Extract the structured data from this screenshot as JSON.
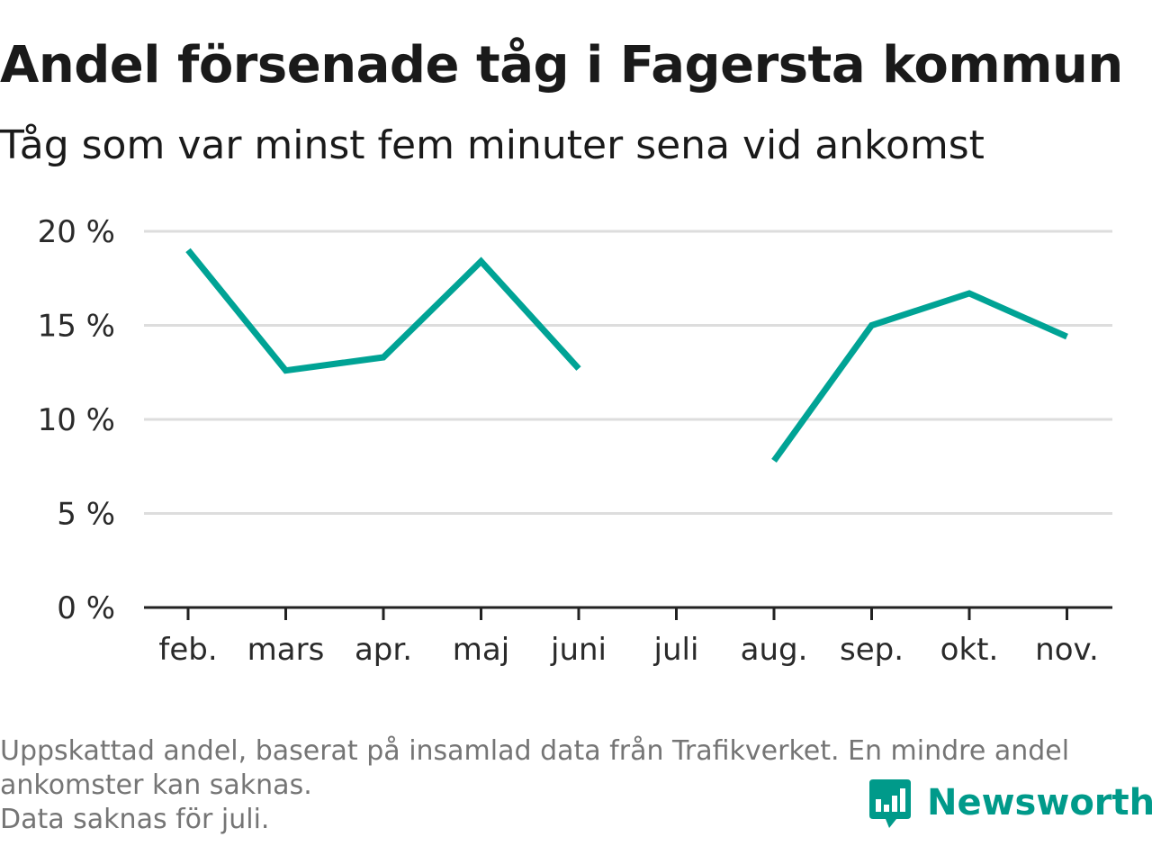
{
  "title": "Andel försenade tåg i Fagersta kommun",
  "subtitle": "Tåg som var minst fem minuter sena vid ankomst",
  "footnote": {
    "line1": "Uppskattad andel, baserat på insamlad data från Trafikverket. En mindre andel",
    "line2": "ankomster kan saknas.",
    "line3": "Data saknas för juli."
  },
  "logo": {
    "text": "Newsworthy",
    "icon": "newsworthy-chat-bars-icon"
  },
  "colors": {
    "line": "#00a395",
    "grid": "#dddddd",
    "axis": "#222222",
    "brand": "#009a8a",
    "footnote": "#757575"
  },
  "chart_data": {
    "type": "line",
    "categories": [
      "feb.",
      "mars",
      "apr.",
      "maj",
      "juni",
      "juli",
      "aug.",
      "sep.",
      "okt.",
      "nov."
    ],
    "series": [
      {
        "values": [
          19.0,
          12.6,
          13.3,
          18.4,
          12.7,
          null,
          7.8,
          15.0,
          16.7,
          14.4
        ]
      }
    ],
    "yticks": [
      "0 %",
      "5 %",
      "10 %",
      "15 %",
      "20 %"
    ],
    "ylim": [
      0,
      20
    ],
    "xlabel": "",
    "ylabel": "",
    "grid": true
  }
}
